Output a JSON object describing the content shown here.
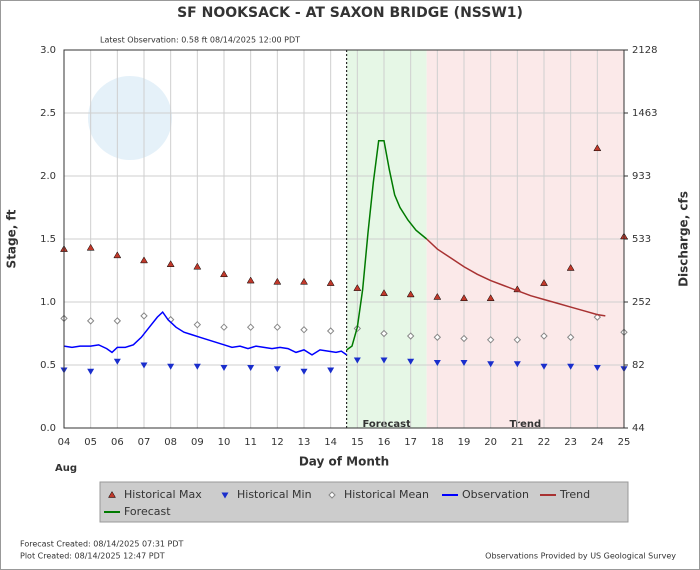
{
  "chart_data": {
    "type": "hydrograph",
    "title": "SF NOOKSACK - AT SAXON BRIDGE  (NSSW1)",
    "subtitle": "Latest Observation: 0.58 ft 08/14/2025 12:00 PDT",
    "x_label": "Day of Month",
    "x_sublabel": "Aug",
    "y_label": "Stage, ft",
    "y2_label": "Discharge, cfs",
    "xlim": [
      4,
      25
    ],
    "xticks": [
      {
        "value": 4,
        "label": "04"
      },
      {
        "value": 5,
        "label": "05"
      },
      {
        "value": 6,
        "label": "06"
      },
      {
        "value": 7,
        "label": "07"
      },
      {
        "value": 8,
        "label": "08"
      },
      {
        "value": 9,
        "label": "09"
      },
      10,
      11,
      12,
      13,
      14,
      15,
      16,
      17,
      18,
      19,
      20,
      21,
      22,
      23,
      24,
      25
    ],
    "ylim": [
      0,
      3
    ],
    "yticks": [
      {
        "value": 0,
        "label": "0.0"
      },
      0.5,
      {
        "value": 1,
        "label": "1.0"
      },
      1.5,
      {
        "value": 2,
        "label": "2.0"
      },
      2.5,
      {
        "value": 3,
        "label": "3.0"
      }
    ],
    "discharge_ticks": [
      {
        "stage": 0,
        "discharge": 44
      },
      {
        "stage": 0.5,
        "discharge": 82
      },
      {
        "stage": 1,
        "discharge": 252
      },
      {
        "stage": 1.5,
        "discharge": 533
      },
      {
        "stage": 2,
        "discharge": 933
      },
      {
        "stage": 2.5,
        "discharge": 1463
      },
      {
        "stage": 3,
        "discharge": 2128
      }
    ],
    "grid": true,
    "regions": [
      {
        "label": "Forecast",
        "x": [
          14.6,
          17.6
        ],
        "color": "#e6f7e6"
      },
      {
        "label": "Trend",
        "x": [
          17.6,
          25
        ],
        "color": "#fbe9e9"
      }
    ],
    "series": [
      {
        "name": "Historical Max",
        "marker": "triangle-up",
        "color": "#c0392b",
        "x": [
          4,
          5,
          6,
          7,
          8,
          9,
          10,
          11,
          12,
          13,
          14,
          15,
          16,
          17,
          18,
          19,
          20,
          21,
          22,
          23,
          24,
          25
        ],
        "values": [
          1.42,
          1.43,
          1.37,
          1.33,
          1.3,
          1.28,
          1.22,
          1.17,
          1.16,
          1.16,
          1.15,
          1.11,
          1.07,
          1.06,
          1.04,
          1.03,
          1.03,
          1.1,
          1.15,
          1.27,
          2.22,
          1.52
        ]
      },
      {
        "name": "Historical Min",
        "marker": "triangle-down",
        "color": "#1a2ecc",
        "x": [
          4,
          5,
          6,
          7,
          8,
          9,
          10,
          11,
          12,
          13,
          14,
          15,
          16,
          17,
          18,
          19,
          20,
          21,
          22,
          23,
          24,
          25
        ],
        "values": [
          0.46,
          0.45,
          0.53,
          0.5,
          0.49,
          0.49,
          0.48,
          0.48,
          0.47,
          0.45,
          0.46,
          0.54,
          0.54,
          0.53,
          0.52,
          0.52,
          0.51,
          0.51,
          0.49,
          0.49,
          0.48,
          0.47
        ]
      },
      {
        "name": "Historical Mean",
        "marker": "diamond",
        "color": "#888888",
        "x": [
          4,
          5,
          6,
          7,
          8,
          9,
          10,
          11,
          12,
          13,
          14,
          15,
          16,
          17,
          18,
          19,
          20,
          21,
          22,
          23,
          24,
          25
        ],
        "values": [
          0.87,
          0.85,
          0.85,
          0.89,
          0.86,
          0.82,
          0.8,
          0.8,
          0.8,
          0.78,
          0.77,
          0.79,
          0.75,
          0.73,
          0.72,
          0.71,
          0.7,
          0.7,
          0.73,
          0.72,
          0.88,
          0.76
        ]
      },
      {
        "name": "Observation",
        "marker": "line",
        "color": "#0000ff",
        "x": [
          4.0,
          4.3,
          4.6,
          5.0,
          5.3,
          5.6,
          5.8,
          6.0,
          6.3,
          6.6,
          6.9,
          7.2,
          7.5,
          7.7,
          7.9,
          8.2,
          8.5,
          8.8,
          9.1,
          9.4,
          9.7,
          10.0,
          10.3,
          10.6,
          10.9,
          11.2,
          11.5,
          11.8,
          12.1,
          12.4,
          12.7,
          13.0,
          13.3,
          13.6,
          13.9,
          14.2,
          14.4,
          14.6
        ],
        "values": [
          0.65,
          0.64,
          0.65,
          0.65,
          0.66,
          0.63,
          0.6,
          0.64,
          0.64,
          0.66,
          0.72,
          0.8,
          0.88,
          0.92,
          0.86,
          0.8,
          0.76,
          0.74,
          0.72,
          0.7,
          0.68,
          0.66,
          0.64,
          0.65,
          0.63,
          0.65,
          0.64,
          0.63,
          0.64,
          0.63,
          0.6,
          0.62,
          0.58,
          0.62,
          0.61,
          0.6,
          0.61,
          0.58
        ]
      },
      {
        "name": "Trend",
        "marker": "line",
        "color": "#a83232",
        "x": [
          17.6,
          18,
          18.5,
          19,
          19.5,
          20,
          20.5,
          21,
          21.5,
          22,
          22.5,
          23,
          23.5,
          24,
          24.3
        ],
        "values": [
          1.5,
          1.42,
          1.35,
          1.28,
          1.22,
          1.17,
          1.13,
          1.09,
          1.05,
          1.02,
          0.99,
          0.96,
          0.93,
          0.9,
          0.89
        ]
      },
      {
        "name": "Forecast",
        "marker": "line",
        "color": "#007a00",
        "x": [
          14.6,
          14.8,
          15.0,
          15.2,
          15.4,
          15.6,
          15.8,
          16.0,
          16.2,
          16.4,
          16.6,
          16.9,
          17.2,
          17.6
        ],
        "values": [
          0.62,
          0.65,
          0.8,
          1.1,
          1.55,
          1.95,
          2.28,
          2.28,
          2.05,
          1.85,
          1.75,
          1.65,
          1.57,
          1.5
        ]
      }
    ],
    "footer_left": [
      "Forecast Created: 08/14/2025 07:31 PDT",
      "Plot Created: 08/14/2025 12:47 PDT"
    ],
    "footer_right": "Observations Provided by US Geological Survey"
  }
}
